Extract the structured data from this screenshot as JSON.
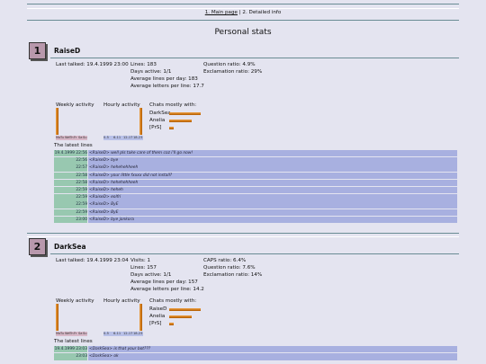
{
  "nav": {
    "main": "1. Main page",
    "separator": "|",
    "current": "2. Detailed info"
  },
  "title": "Personal stats",
  "labels": {
    "weekly": "Weekly activity",
    "hourly": "Hourly activity",
    "chats": "Chats mostly with:",
    "latest": "The latest lines",
    "days": [
      "Mo",
      "Tu",
      "We",
      "Th",
      "Fr",
      "Sa",
      "Su"
    ],
    "hours": [
      "0-5",
      "6-11",
      "12-17",
      "18-23"
    ]
  },
  "users": [
    {
      "rank": 1,
      "name": "RaiseD",
      "stats_left": [
        "Last talked: 19.4.1999 23:00"
      ],
      "stats_mid": [
        "Lines: 183",
        "Days active: 1/1",
        "Average lines per day: 183",
        "Average letters per line: 17.7"
      ],
      "stats_right": [
        "Question ratio: 4.9%",
        "Exclamation ratio: 29%"
      ],
      "weekly": [
        100,
        0,
        0,
        0,
        0,
        0,
        0
      ],
      "hourly": [
        0,
        0,
        0,
        100
      ],
      "chats": [
        {
          "name": "DarkSea",
          "value": 35
        },
        {
          "name": "Anelia",
          "value": 25
        },
        {
          "name": "[PrS]",
          "value": 5
        }
      ],
      "lines": [
        {
          "time": "19.4.1999 22:56",
          "text": "<RaiseD> well pls take care of them coz i'll go now!"
        },
        {
          "time": "22:56",
          "text": "<RaiseD> bye"
        },
        {
          "time": "22:57",
          "text": "<RaiseD> hehehehheeh"
        },
        {
          "time": "22:58",
          "text": "<RaiseD> your little fxxxx did not install?"
        },
        {
          "time": "22:58",
          "text": "<RaiseD> hehehehheeh"
        },
        {
          "time": "22:59",
          "text": "<RaiseD> heheh"
        },
        {
          "time": "22:59",
          "text": "<RaiseD> eolfri"
        },
        {
          "time": "22:59",
          "text": "<RaiseD> ByE"
        },
        {
          "time": "22:59",
          "text": "<RaiseD> ByE"
        },
        {
          "time": "23:00",
          "text": "<RaiseD> bye jonkora"
        }
      ]
    },
    {
      "rank": 2,
      "name": "DarkSea",
      "stats_left": [
        "Last talked: 19.4.1999 23:04"
      ],
      "stats_mid": [
        "Visits: 1",
        "Lines: 157",
        "Days active: 1/1",
        "Average lines per day: 157",
        "Average letters per line: 14.2"
      ],
      "stats_right": [
        "CAPS ratio: 6.4%",
        "Question ratio: 7.6%",
        "Exclamation ratio: 14%"
      ],
      "weekly": [
        100,
        0,
        0,
        0,
        0,
        0,
        0
      ],
      "hourly": [
        0,
        0,
        0,
        100
      ],
      "chats": [
        {
          "name": "RaiseD",
          "value": 35
        },
        {
          "name": "Anelia",
          "value": 25
        },
        {
          "name": "[PrS]",
          "value": 5
        }
      ],
      "lines": [
        {
          "time": "19.4.1999 23:03",
          "text": "<DarkSea> is that your bot???"
        },
        {
          "time": "23:03",
          "text": "<DarkSea> ok"
        }
      ]
    }
  ]
}
